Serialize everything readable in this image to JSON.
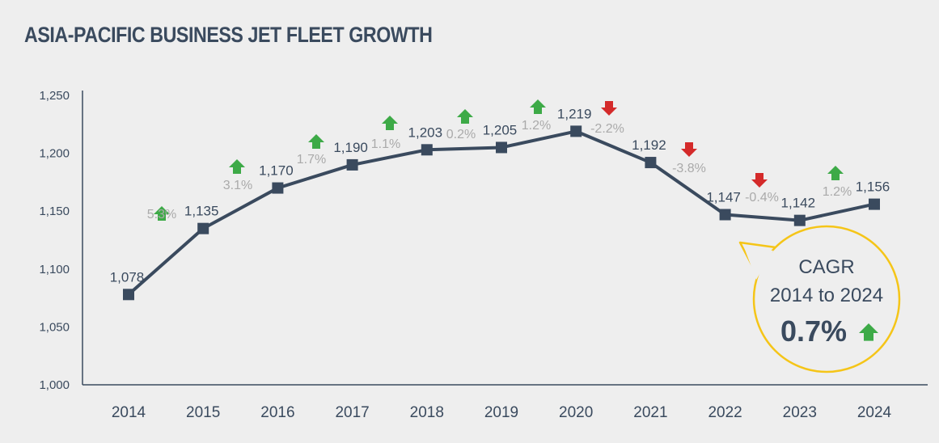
{
  "chart_data": {
    "type": "line",
    "title": "ASIA-PACIFIC BUSINESS JET FLEET GROWTH",
    "xlabel": "",
    "ylabel": "",
    "categories": [
      "2014",
      "2015",
      "2016",
      "2017",
      "2018",
      "2019",
      "2020",
      "2021",
      "2022",
      "2023",
      "2024"
    ],
    "values": [
      1078,
      1135,
      1170,
      1190,
      1203,
      1205,
      1219,
      1192,
      1147,
      1142,
      1156
    ],
    "value_labels": [
      "1,078",
      "1,135",
      "1,170",
      "1,190",
      "1,203",
      "1,205",
      "1,219",
      "1,192",
      "1,147",
      "1,142",
      "1,156"
    ],
    "growth": [
      {
        "label": "5.3%",
        "dir": "up"
      },
      {
        "label": "3.1%",
        "dir": "up"
      },
      {
        "label": "1.7%",
        "dir": "up"
      },
      {
        "label": "1.1%",
        "dir": "up"
      },
      {
        "label": "0.2%",
        "dir": "up"
      },
      {
        "label": "1.2%",
        "dir": "up"
      },
      {
        "label": "-2.2%",
        "dir": "down"
      },
      {
        "label": "-3.8%",
        "dir": "down"
      },
      {
        "label": "-0.4%",
        "dir": "down"
      },
      {
        "label": "1.2%",
        "dir": "up"
      }
    ],
    "ylim": [
      1000,
      1250
    ],
    "yticks": [
      1000,
      1050,
      1100,
      1150,
      1200,
      1250
    ],
    "ytick_labels": [
      "1,000",
      "1,050",
      "1,100",
      "1,150",
      "1,200",
      "1,250"
    ],
    "grid": false,
    "colors": {
      "line": "#3a4a5e",
      "up": "#3daa47",
      "down": "#d42a2a",
      "growth_text": "#aaaaaa",
      "callout_border": "#f5c518"
    },
    "callout": {
      "line1": "CAGR",
      "line2": "2014 to 2024",
      "value": "0.7%",
      "dir": "up"
    }
  }
}
